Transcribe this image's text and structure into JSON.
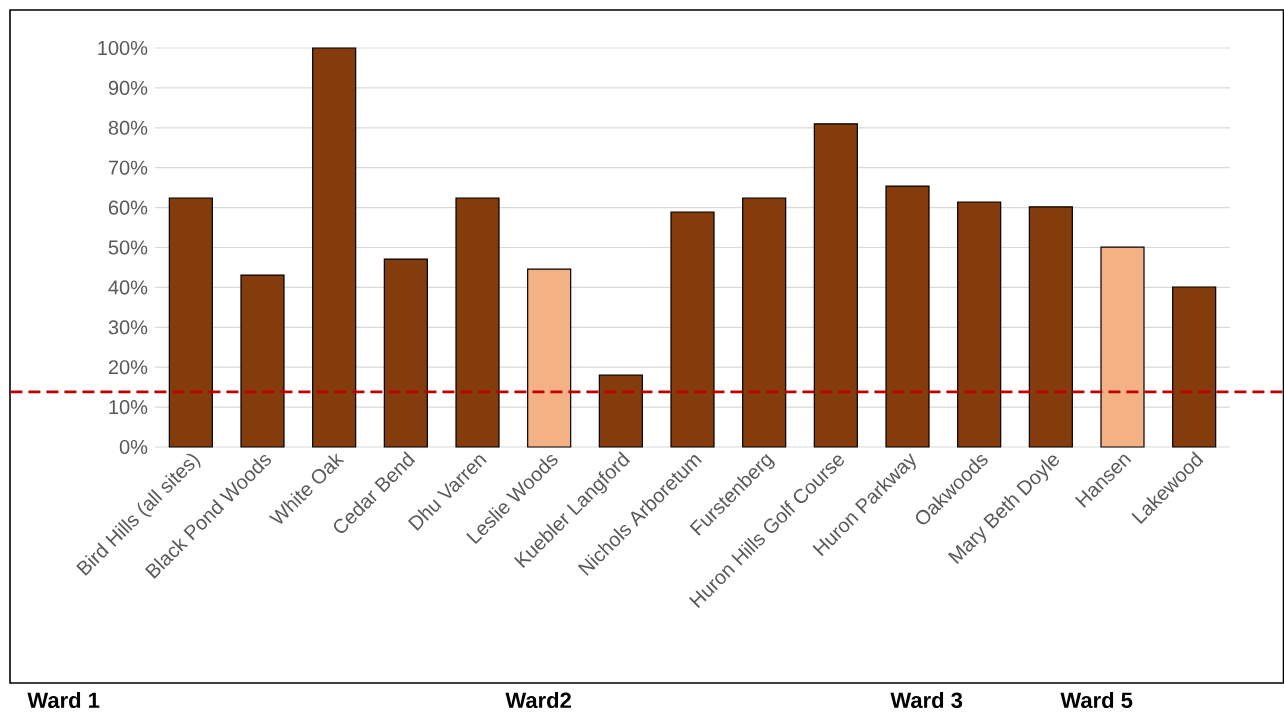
{
  "chart_data": {
    "type": "bar",
    "categories": [
      "Bird Hills (all sites)",
      "Black Pond Woods",
      "White Oak",
      "Cedar Bend",
      "Dhu Varren",
      "Leslie Woods",
      "Kuebler Langford",
      "Nichols Arboretum",
      "Furstenberg",
      "Huron Hills Golf Course",
      "Huron Parkway",
      "Oakwoods",
      "Mary Beth Doyle",
      "Hansen",
      "Lakewood"
    ],
    "values": [
      62.4,
      43.1,
      100,
      47.1,
      62.4,
      44.6,
      18,
      58.9,
      62.4,
      81,
      65.4,
      61.4,
      60.2,
      50.1,
      40.1
    ],
    "colors": [
      "#843c0c",
      "#843c0c",
      "#843c0c",
      "#843c0c",
      "#843c0c",
      "#f4b183",
      "#843c0c",
      "#843c0c",
      "#843c0c",
      "#843c0c",
      "#843c0c",
      "#843c0c",
      "#843c0c",
      "#f4b183",
      "#843c0c"
    ],
    "ylim": [
      0,
      100
    ],
    "yticks": [
      {
        "value": 0,
        "label": "0%"
      },
      {
        "value": 10,
        "label": "10%"
      },
      {
        "value": 20,
        "label": "20%"
      },
      {
        "value": 30,
        "label": "30%"
      },
      {
        "value": 40,
        "label": "40%"
      },
      {
        "value": 50,
        "label": "50%"
      },
      {
        "value": 60,
        "label": "60%"
      },
      {
        "value": 70,
        "label": "70%"
      },
      {
        "value": 80,
        "label": "80%"
      },
      {
        "value": 90,
        "label": "90%"
      },
      {
        "value": 100,
        "label": "100%"
      }
    ],
    "grid": "y",
    "ref_lines": [
      {
        "axis": "y",
        "value": 13.8,
        "color": "#c00000",
        "line_style": "dashed"
      }
    ],
    "annotations": [
      "Ward 1",
      "Ward2",
      "Ward 3",
      "Ward 5"
    ]
  }
}
